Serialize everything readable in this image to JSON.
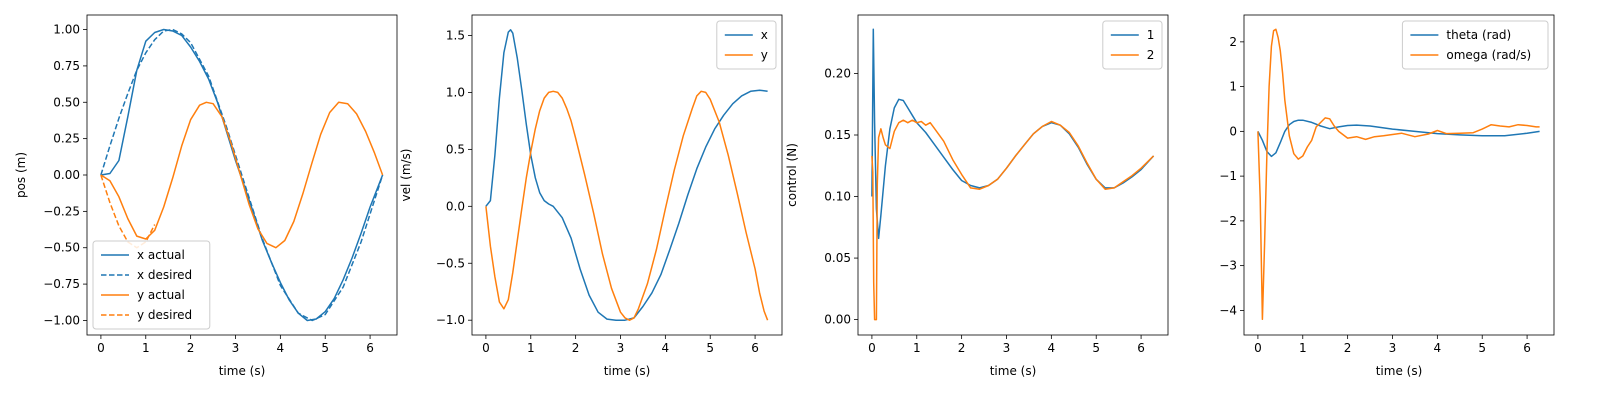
{
  "colors": {
    "blue": "#1f77b4",
    "orange": "#ff7f0e"
  },
  "chart_data": [
    {
      "type": "line",
      "xlabel": "time (s)",
      "ylabel": "pos (m)",
      "xlim": [
        -0.31,
        6.6
      ],
      "ylim": [
        -1.1,
        1.1
      ],
      "xticks": [
        0,
        1,
        2,
        3,
        4,
        5,
        6
      ],
      "yticks": [
        1.0,
        0.75,
        0.5,
        0.25,
        0.0,
        -0.25,
        -0.5,
        -0.75,
        -1.0
      ],
      "ytick_labels": [
        "1.00",
        "0.75",
        "0.50",
        "0.25",
        "0.00",
        "−0.25",
        "−0.50",
        "−0.75",
        "−1.00"
      ],
      "legend_position": "bottom-left",
      "series": [
        {
          "name": "x actual",
          "color": "#1f77b4",
          "style": "solid",
          "x": [
            0,
            0.2,
            0.4,
            0.6,
            0.8,
            1.0,
            1.2,
            1.4,
            1.6,
            1.8,
            2.0,
            2.2,
            2.4,
            2.6,
            2.8,
            3.0,
            3.2,
            3.4,
            3.6,
            3.8,
            4.0,
            4.2,
            4.4,
            4.6,
            4.8,
            5.0,
            5.2,
            5.4,
            5.6,
            5.8,
            6.0,
            6.28
          ],
          "y": [
            0.0,
            0.01,
            0.1,
            0.4,
            0.72,
            0.92,
            0.98,
            1.0,
            0.99,
            0.96,
            0.88,
            0.78,
            0.66,
            0.5,
            0.3,
            0.1,
            -0.08,
            -0.26,
            -0.45,
            -0.6,
            -0.74,
            -0.86,
            -0.95,
            -1.0,
            -0.99,
            -0.94,
            -0.85,
            -0.72,
            -0.57,
            -0.4,
            -0.22,
            0.0
          ]
        },
        {
          "name": "x desired",
          "color": "#1f77b4",
          "style": "dashed",
          "x": [
            0,
            0.2,
            0.4,
            0.6,
            0.8,
            1.0,
            1.2,
            1.4,
            1.6,
            1.8,
            2.0,
            2.4,
            2.8,
            3.14,
            3.6,
            4.0,
            4.4,
            4.71,
            5.0,
            5.4,
            5.8,
            6.28
          ],
          "y": [
            0.0,
            0.2,
            0.39,
            0.56,
            0.72,
            0.84,
            0.93,
            0.99,
            1.0,
            0.97,
            0.91,
            0.68,
            0.33,
            0.0,
            -0.44,
            -0.76,
            -0.95,
            -1.0,
            -0.96,
            -0.77,
            -0.46,
            0.0
          ]
        },
        {
          "name": "y actual",
          "color": "#ff7f0e",
          "style": "solid",
          "x": [
            0,
            0.2,
            0.4,
            0.6,
            0.8,
            1.0,
            1.2,
            1.4,
            1.6,
            1.8,
            2.0,
            2.2,
            2.35,
            2.5,
            2.7,
            2.9,
            3.1,
            3.3,
            3.5,
            3.7,
            3.9,
            4.1,
            4.3,
            4.5,
            4.7,
            4.9,
            5.1,
            5.3,
            5.5,
            5.7,
            5.9,
            6.1,
            6.28
          ],
          "y": [
            0.0,
            -0.04,
            -0.15,
            -0.3,
            -0.42,
            -0.44,
            -0.38,
            -0.22,
            -0.02,
            0.2,
            0.38,
            0.48,
            0.5,
            0.49,
            0.4,
            0.22,
            0.01,
            -0.2,
            -0.37,
            -0.47,
            -0.5,
            -0.45,
            -0.32,
            -0.13,
            0.08,
            0.28,
            0.43,
            0.5,
            0.49,
            0.42,
            0.3,
            0.15,
            0.0
          ]
        },
        {
          "name": "y desired",
          "color": "#ff7f0e",
          "style": "dashed",
          "x": [
            0,
            0.2,
            0.4,
            0.6,
            0.8,
            1.0,
            1.2
          ],
          "y": [
            0.0,
            -0.19,
            -0.35,
            -0.46,
            -0.5,
            -0.46,
            -0.34
          ]
        }
      ]
    },
    {
      "type": "line",
      "xlabel": "time (s)",
      "ylabel": "vel (m/s)",
      "xlim": [
        -0.31,
        6.6
      ],
      "ylim": [
        -1.13,
        1.68
      ],
      "xticks": [
        0,
        1,
        2,
        3,
        4,
        5,
        6
      ],
      "yticks": [
        1.5,
        1.0,
        0.5,
        0.0,
        -0.5,
        -1.0
      ],
      "ytick_labels": [
        "1.5",
        "1.0",
        "0.5",
        "0.0",
        "−0.5",
        "−1.0"
      ],
      "legend_position": "top-right",
      "series": [
        {
          "name": "x",
          "color": "#1f77b4",
          "style": "solid",
          "x": [
            0,
            0.1,
            0.2,
            0.3,
            0.4,
            0.5,
            0.55,
            0.6,
            0.7,
            0.8,
            0.9,
            1.0,
            1.1,
            1.2,
            1.3,
            1.4,
            1.5,
            1.7,
            1.9,
            2.1,
            2.3,
            2.5,
            2.7,
            2.9,
            3.1,
            3.3,
            3.5,
            3.7,
            3.9,
            4.1,
            4.3,
            4.5,
            4.7,
            4.9,
            5.1,
            5.3,
            5.5,
            5.7,
            5.9,
            6.1,
            6.28
          ],
          "y": [
            0.0,
            0.05,
            0.45,
            0.95,
            1.35,
            1.53,
            1.55,
            1.52,
            1.3,
            1.02,
            0.72,
            0.45,
            0.25,
            0.12,
            0.05,
            0.02,
            0.0,
            -0.1,
            -0.28,
            -0.55,
            -0.78,
            -0.93,
            -0.99,
            -1.0,
            -1.0,
            -0.98,
            -0.88,
            -0.76,
            -0.6,
            -0.38,
            -0.15,
            0.1,
            0.33,
            0.52,
            0.68,
            0.8,
            0.9,
            0.97,
            1.01,
            1.02,
            1.01
          ]
        },
        {
          "name": "y",
          "color": "#ff7f0e",
          "style": "solid",
          "x": [
            0,
            0.1,
            0.2,
            0.3,
            0.4,
            0.5,
            0.6,
            0.7,
            0.8,
            0.9,
            1.0,
            1.1,
            1.2,
            1.3,
            1.4,
            1.5,
            1.6,
            1.7,
            1.8,
            1.9,
            2.0,
            2.2,
            2.4,
            2.6,
            2.8,
            3.0,
            3.1,
            3.2,
            3.3,
            3.4,
            3.6,
            3.8,
            4.0,
            4.2,
            4.4,
            4.6,
            4.7,
            4.8,
            4.9,
            5.0,
            5.2,
            5.4,
            5.6,
            5.8,
            6.0,
            6.1,
            6.2,
            6.28
          ],
          "y": [
            0.0,
            -0.35,
            -0.62,
            -0.84,
            -0.9,
            -0.82,
            -0.58,
            -0.3,
            -0.02,
            0.25,
            0.48,
            0.68,
            0.84,
            0.95,
            1.0,
            1.01,
            1.0,
            0.95,
            0.86,
            0.75,
            0.6,
            0.28,
            -0.06,
            -0.42,
            -0.72,
            -0.93,
            -0.98,
            -1.0,
            -0.98,
            -0.9,
            -0.68,
            -0.38,
            -0.02,
            0.32,
            0.62,
            0.86,
            0.97,
            1.01,
            1.0,
            0.94,
            0.74,
            0.45,
            0.12,
            -0.23,
            -0.55,
            -0.76,
            -0.92,
            -1.0
          ]
        }
      ]
    },
    {
      "type": "line",
      "xlabel": "time (s)",
      "ylabel": "control (N)",
      "xlim": [
        -0.31,
        6.6
      ],
      "ylim": [
        -0.0125,
        0.2475
      ],
      "xticks": [
        0,
        1,
        2,
        3,
        4,
        5,
        6
      ],
      "yticks": [
        0.2,
        0.15,
        0.1,
        0.05,
        0.0
      ],
      "ytick_labels": [
        "0.20",
        "0.15",
        "0.10",
        "0.05",
        "0.00"
      ],
      "legend_position": "top-right",
      "series": [
        {
          "name": "1",
          "color": "#1f77b4",
          "style": "solid",
          "x": [
            0,
            0.03,
            0.06,
            0.1,
            0.15,
            0.2,
            0.3,
            0.4,
            0.5,
            0.6,
            0.7,
            0.8,
            0.9,
            1.0,
            1.2,
            1.4,
            1.6,
            1.8,
            2.0,
            2.2,
            2.4,
            2.6,
            2.8,
            3.0,
            3.2,
            3.4,
            3.6,
            3.8,
            4.0,
            4.2,
            4.4,
            4.6,
            4.8,
            5.0,
            5.2,
            5.4,
            5.6,
            5.8,
            6.0,
            6.28
          ],
          "y": [
            0.1,
            0.236,
            0.16,
            0.09,
            0.066,
            0.085,
            0.125,
            0.155,
            0.172,
            0.179,
            0.178,
            0.172,
            0.166,
            0.16,
            0.152,
            0.142,
            0.132,
            0.122,
            0.113,
            0.109,
            0.107,
            0.109,
            0.114,
            0.123,
            0.133,
            0.142,
            0.151,
            0.157,
            0.16,
            0.158,
            0.151,
            0.14,
            0.126,
            0.114,
            0.107,
            0.107,
            0.111,
            0.116,
            0.122,
            0.133
          ]
        },
        {
          "name": "2",
          "color": "#ff7f0e",
          "style": "solid",
          "x": [
            0,
            0.02,
            0.04,
            0.06,
            0.08,
            0.1,
            0.12,
            0.15,
            0.2,
            0.25,
            0.3,
            0.4,
            0.5,
            0.6,
            0.7,
            0.8,
            0.9,
            1.0,
            1.1,
            1.2,
            1.3,
            1.4,
            1.6,
            1.8,
            2.0,
            2.2,
            2.4,
            2.6,
            2.8,
            3.0,
            3.2,
            3.4,
            3.6,
            3.8,
            4.0,
            4.2,
            4.4,
            4.6,
            4.8,
            5.0,
            5.2,
            5.4,
            5.6,
            5.8,
            6.0,
            6.28
          ],
          "y": [
            0.133,
            0.12,
            0.03,
            0.0,
            0.0,
            0.0,
            0.11,
            0.148,
            0.155,
            0.148,
            0.142,
            0.139,
            0.153,
            0.16,
            0.162,
            0.16,
            0.162,
            0.16,
            0.161,
            0.158,
            0.16,
            0.155,
            0.145,
            0.13,
            0.118,
            0.107,
            0.106,
            0.109,
            0.114,
            0.123,
            0.133,
            0.142,
            0.151,
            0.157,
            0.161,
            0.158,
            0.152,
            0.141,
            0.127,
            0.114,
            0.106,
            0.107,
            0.112,
            0.117,
            0.123,
            0.133
          ]
        }
      ]
    },
    {
      "type": "line",
      "xlabel": "time (s)",
      "ylabel": "",
      "xlim": [
        -0.31,
        6.6
      ],
      "ylim": [
        -4.55,
        2.6
      ],
      "xticks": [
        0,
        1,
        2,
        3,
        4,
        5,
        6
      ],
      "yticks": [
        2,
        1,
        0,
        -1,
        -2,
        -3,
        -4
      ],
      "ytick_labels": [
        "2",
        "1",
        "0",
        "−1",
        "−2",
        "−3",
        "−4"
      ],
      "legend_position": "top-right",
      "series": [
        {
          "name": "theta (rad)",
          "color": "#1f77b4",
          "style": "solid",
          "x": [
            0,
            0.1,
            0.2,
            0.3,
            0.4,
            0.5,
            0.6,
            0.7,
            0.8,
            0.9,
            1.0,
            1.2,
            1.4,
            1.6,
            1.8,
            2.0,
            2.2,
            2.5,
            3.0,
            3.5,
            4.0,
            4.5,
            5.0,
            5.5,
            6.0,
            6.28
          ],
          "y": [
            0.0,
            -0.2,
            -0.45,
            -0.56,
            -0.48,
            -0.25,
            0.0,
            0.15,
            0.22,
            0.25,
            0.25,
            0.2,
            0.12,
            0.06,
            0.1,
            0.13,
            0.14,
            0.12,
            0.05,
            0.0,
            -0.05,
            -0.08,
            -0.1,
            -0.1,
            -0.04,
            0.0
          ]
        },
        {
          "name": "omega (rad/s)",
          "color": "#ff7f0e",
          "style": "solid",
          "x": [
            0,
            0.05,
            0.1,
            0.15,
            0.2,
            0.25,
            0.3,
            0.35,
            0.4,
            0.45,
            0.5,
            0.55,
            0.6,
            0.7,
            0.8,
            0.9,
            1.0,
            1.1,
            1.2,
            1.3,
            1.4,
            1.5,
            1.6,
            1.7,
            1.8,
            2.0,
            2.2,
            2.4,
            2.6,
            2.8,
            3.0,
            3.2,
            3.5,
            3.8,
            4.0,
            4.2,
            4.5,
            4.8,
            5.0,
            5.2,
            5.4,
            5.6,
            5.8,
            6.0,
            6.2,
            6.28
          ],
          "y": [
            0.0,
            -1.5,
            -4.2,
            -2.5,
            -0.5,
            1.0,
            1.9,
            2.25,
            2.28,
            2.1,
            1.8,
            1.3,
            0.7,
            -0.1,
            -0.5,
            -0.62,
            -0.55,
            -0.35,
            -0.2,
            0.1,
            0.2,
            0.3,
            0.28,
            0.12,
            0.0,
            -0.15,
            -0.12,
            -0.18,
            -0.12,
            -0.1,
            -0.07,
            -0.04,
            -0.12,
            -0.06,
            0.02,
            -0.05,
            -0.04,
            -0.03,
            0.05,
            0.15,
            0.12,
            0.1,
            0.15,
            0.13,
            0.1,
            0.1
          ]
        }
      ]
    }
  ]
}
